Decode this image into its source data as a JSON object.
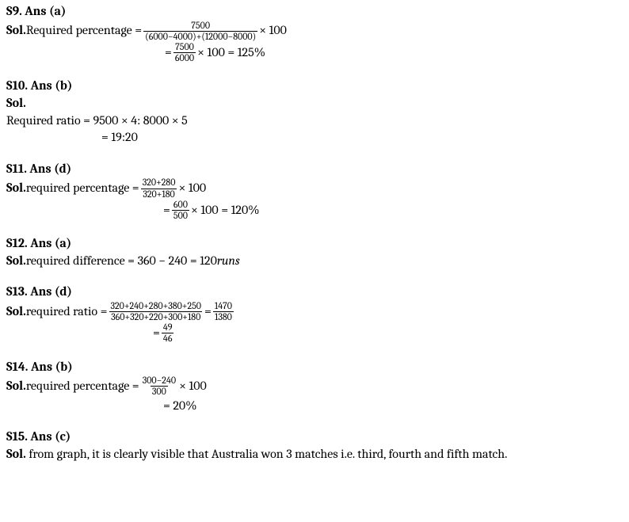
{
  "s9": {
    "header": "S9. Ans (a)",
    "sol_label": "Sol.",
    "line1_pre": " Required percentage = ",
    "line1_num": "7500",
    "line1_den": "(6000−4000)+(12000−8000)",
    "line1_post": " × 100",
    "line2_pre": "= ",
    "line2_num": "7500",
    "line2_den": "6000",
    "line2_post": " × 100 = 125%"
  },
  "s10": {
    "header": "S10. Ans (b)",
    "sol_label": "Sol.",
    "line1": "Required ratio = 9500 × 4: 8000 × 5",
    "line2": "= 19:20"
  },
  "s11": {
    "header": "S11. Ans (d)",
    "sol_label": "Sol.",
    "line1_pre": " required percentage = ",
    "line1_num": "320+280",
    "line1_den": "320+180",
    "line1_post": " × 100",
    "line2_pre": "= ",
    "line2_num": "600",
    "line2_den": "500",
    "line2_post": " × 100 = 120%"
  },
  "s12": {
    "header": "S12. Ans (a)",
    "sol_label": "Sol.",
    "line1_pre": " required difference = 360 − 240 = 120 ",
    "line1_unit": "runs"
  },
  "s13": {
    "header": "S13. Ans (d)",
    "sol_label": "Sol.",
    "line1_pre": " required ratio = ",
    "line1_num": "320+240+280+380+250",
    "line1_den": "360+320+220+300+180",
    "line1_mid": " = ",
    "line1_num2": "1470",
    "line1_den2": "1380",
    "line2_pre": "= ",
    "line2_num": "49",
    "line2_den": "46"
  },
  "s14": {
    "header": "S14. Ans (b)",
    "sol_label": "Sol.",
    "line1_pre": " required percentage = ",
    "line1_num": "300−240",
    "line1_den": "300",
    "line1_post": " × 100",
    "line2": "= 20%"
  },
  "s15": {
    "header": "S15. Ans (c)",
    "sol_label": "Sol.",
    "line1": " from graph, it is clearly visible that Australia won 3 matches i.e. third, fourth and fifth match."
  }
}
